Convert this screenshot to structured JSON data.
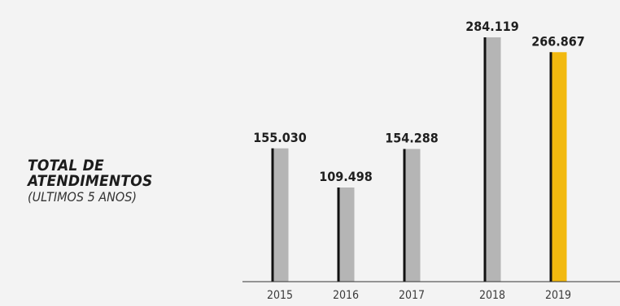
{
  "title": {
    "line1": "TOTAL DE",
    "line2": "ATENDIMENTOS",
    "line3": "(ULTIMOS 5 ANOS)"
  },
  "colors": {
    "background": "#f3f3f3",
    "bar": "#b5b5b5",
    "bar_highlight": "#f2b90f",
    "bar_edge": "#111111",
    "axis": "#333333"
  },
  "chart_data": {
    "type": "bar",
    "title": "TOTAL DE ATENDIMENTOS (ULTIMOS 5 ANOS)",
    "categories": [
      "2015",
      "2016",
      "2017",
      "2018",
      "2019"
    ],
    "values": [
      155030,
      109498,
      154288,
      284119,
      266867
    ],
    "value_labels": [
      "155.030",
      "109.498",
      "154.288",
      "284.119",
      "266.867"
    ],
    "highlight_index": 4,
    "ylim": [
      0,
      284119
    ],
    "grid": false,
    "legend": "none",
    "xlabel": "",
    "ylabel": ""
  }
}
